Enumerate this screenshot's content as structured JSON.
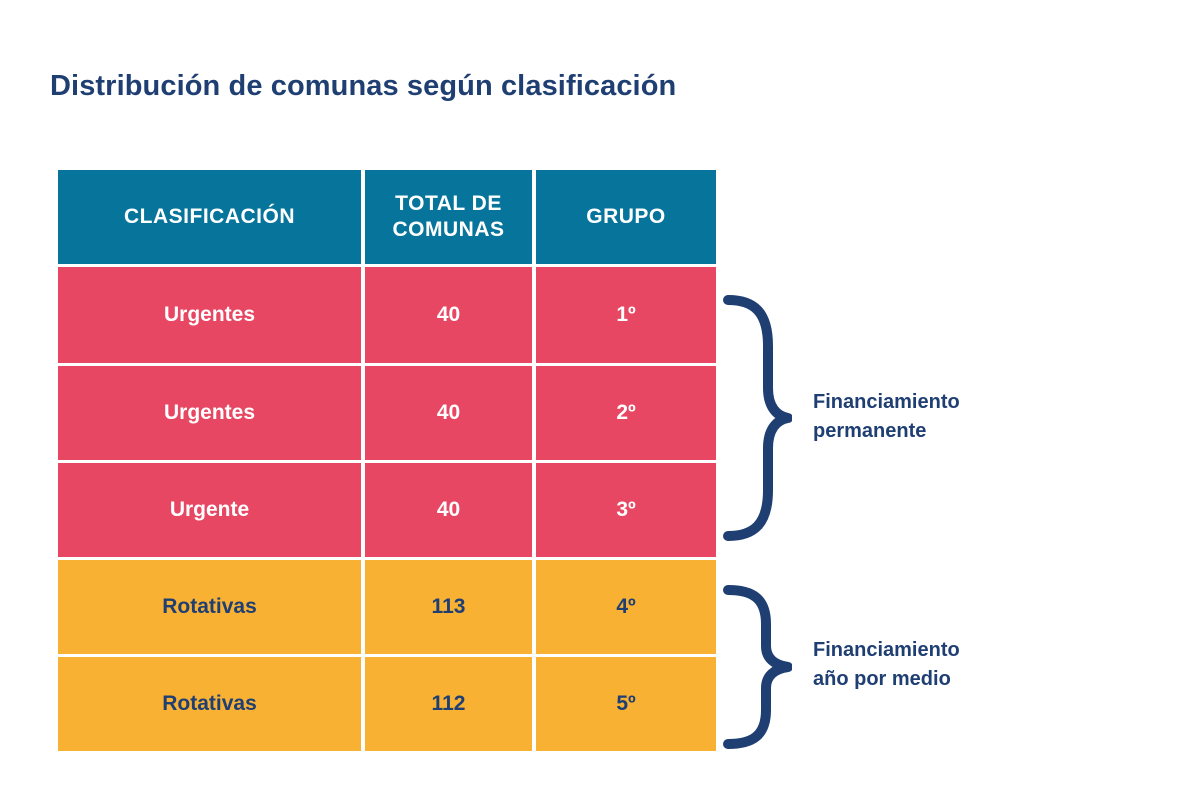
{
  "title": "Distribución de comunas según clasificación",
  "table": {
    "headers": [
      {
        "lines": [
          "CLASIFICACIÓN"
        ]
      },
      {
        "lines": [
          "TOTAL DE",
          "COMUNAS"
        ]
      },
      {
        "lines": [
          "GRUPO"
        ]
      }
    ],
    "rows": [
      {
        "clasificacion": "Urgentes",
        "total": "40",
        "grupo": "1º",
        "color": "#e84763"
      },
      {
        "clasificacion": "Urgentes",
        "total": "40",
        "grupo": "2º",
        "color": "#e84763"
      },
      {
        "clasificacion": "Urgente",
        "total": "40",
        "grupo": "3º",
        "color": "#e84763"
      },
      {
        "clasificacion": "Rotativas",
        "total": "113",
        "grupo": "4º",
        "color": "#f8b133"
      },
      {
        "clasificacion": "Rotativas",
        "total": "112",
        "grupo": "5º",
        "color": "#f8b133"
      }
    ]
  },
  "groups": [
    {
      "label_lines": [
        "Financiamiento",
        "permanente"
      ]
    },
    {
      "label_lines": [
        "Financiamiento",
        "año por medio"
      ]
    }
  ],
  "colors": {
    "header": "#07759b",
    "urgent": "#e84763",
    "rotating": "#f8b133",
    "text_dark": "#1f3f73"
  }
}
